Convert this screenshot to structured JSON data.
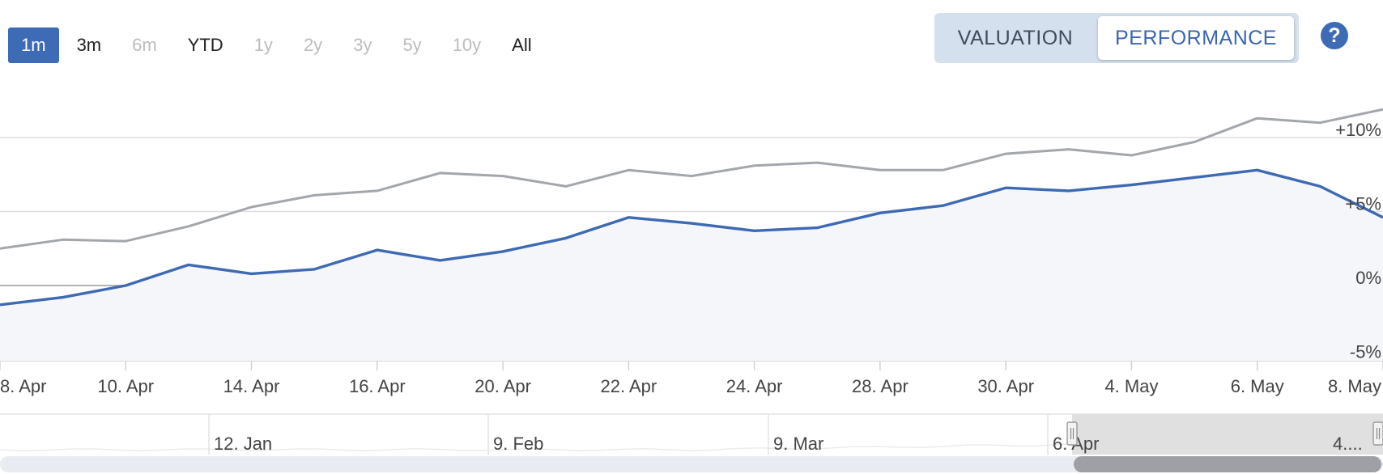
{
  "range_buttons": [
    {
      "label": "1m",
      "state": "active"
    },
    {
      "label": "3m",
      "state": "enabled"
    },
    {
      "label": "6m",
      "state": "disabled"
    },
    {
      "label": "YTD",
      "state": "enabled"
    },
    {
      "label": "1y",
      "state": "disabled"
    },
    {
      "label": "2y",
      "state": "disabled"
    },
    {
      "label": "3y",
      "state": "disabled"
    },
    {
      "label": "5y",
      "state": "disabled"
    },
    {
      "label": "10y",
      "state": "disabled"
    },
    {
      "label": "All",
      "state": "enabled"
    }
  ],
  "toggle": {
    "valuation_label": "VALUATION",
    "performance_label": "PERFORMANCE",
    "selected": "PERFORMANCE"
  },
  "help": {
    "label": "?"
  },
  "colors": {
    "accent": "#3e6bb5",
    "series_main": "#3d6ab3",
    "series_benchmark": "#a3a6ab",
    "area_fill": "#f4f6fa",
    "toggle_bg": "#d5e0ee"
  },
  "chart_data": {
    "type": "line",
    "title": "",
    "xlabel": "",
    "ylabel": "",
    "ylim": [
      -5,
      12
    ],
    "y_ticks": [
      "+10%",
      "+5%",
      "0%",
      "-5%"
    ],
    "y_tick_values": [
      10,
      5,
      0,
      -5
    ],
    "x_tick_labels": [
      "8. Apr",
      "10. Apr",
      "14. Apr",
      "16. Apr",
      "20. Apr",
      "22. Apr",
      "24. Apr",
      "28. Apr",
      "30. Apr",
      "4. May",
      "6. May",
      "8. May"
    ],
    "x_tick_index": [
      0,
      2,
      4,
      6,
      8,
      10,
      12,
      14,
      16,
      18,
      20,
      22
    ],
    "series": [
      {
        "role": "main",
        "values": [
          -1.3,
          -0.8,
          0.0,
          1.4,
          0.8,
          1.1,
          2.4,
          1.7,
          2.3,
          3.2,
          4.6,
          4.2,
          3.7,
          3.9,
          4.9,
          5.4,
          6.6,
          6.4,
          6.8,
          7.3,
          7.8,
          6.7,
          4.6
        ]
      },
      {
        "role": "benchmark",
        "values": [
          2.5,
          3.1,
          3.0,
          4.0,
          5.3,
          6.1,
          6.4,
          7.6,
          7.4,
          6.7,
          7.8,
          7.4,
          8.1,
          8.3,
          7.8,
          7.8,
          8.9,
          9.2,
          8.8,
          9.7,
          11.3,
          11.0,
          11.9
        ]
      }
    ],
    "navigator": {
      "labels": [
        "12. Jan",
        "9. Feb",
        "9. Mar",
        "6. Apr",
        "4...."
      ]
    }
  }
}
